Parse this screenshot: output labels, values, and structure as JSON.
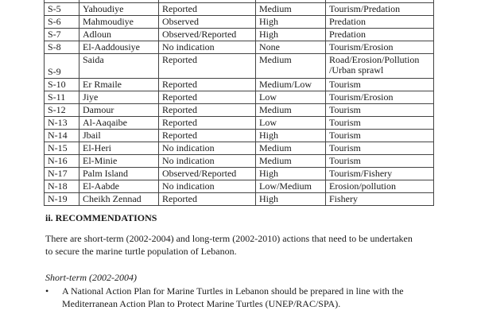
{
  "table": {
    "rows": [
      [
        "",
        "",
        "",
        "",
        ""
      ],
      [
        "S-5",
        "Yahoudiye",
        "Reported",
        "Medium",
        "Tourism/Predation"
      ],
      [
        "S-6",
        "Mahmoudiye",
        "Observed",
        "High",
        "Predation"
      ],
      [
        "S-7",
        "Adloun",
        "Observed/Reported",
        "High",
        "Predation"
      ],
      [
        "S-8",
        "El-Aaddousiye",
        "No indication",
        "None",
        "Tourism/Erosion"
      ],
      [
        "S-9",
        "Saida",
        "Reported",
        "Medium",
        "Road/Erosion/Pollution /Urban sprawl"
      ],
      [
        "S-10",
        "Er Rmaile",
        "Reported",
        "Medium/Low",
        "Tourism"
      ],
      [
        "S-11",
        "Jiye",
        "Reported",
        "Low",
        "Tourism/Erosion"
      ],
      [
        "S-12",
        "Damour",
        "Reported",
        "Medium",
        "Tourism"
      ],
      [
        "N-13",
        "Al-Aaqaibe",
        "Reported",
        "Low",
        "Tourism"
      ],
      [
        "N-14",
        "Jbail",
        "Reported",
        "High",
        "Tourism"
      ],
      [
        "N-15",
        "El-Heri",
        "No indication",
        "Medium",
        "Tourism"
      ],
      [
        "N-16",
        "El-Minie",
        "No indication",
        "Medium",
        "Tourism"
      ],
      [
        "N-17",
        "Palm Island",
        "Observed/Reported",
        "High",
        "Tourism/Fishery"
      ],
      [
        "N-18",
        "El-Aabde",
        "No indication",
        "Low/Medium",
        "Erosion/pollution"
      ],
      [
        "N-19",
        "Cheikh Zennad",
        "Reported",
        "High",
        "Fishery"
      ]
    ]
  },
  "section": {
    "heading": "ii. RECOMMENDATIONS",
    "paragraph": "There are short-term  (2002-2004) and long-term (2002-2010) actions that need to be undertaken to secure the marine turtle population of Lebanon.",
    "subheading": "Short-term (2002-2004)",
    "bullet_symbol": "•",
    "bullets": [
      "A National Action Plan for Marine Turtles in Lebanon should be prepared in line with the Mediterranean Action Plan to Protect Marine Turtles (UNEP/RAC/SPA)."
    ]
  }
}
